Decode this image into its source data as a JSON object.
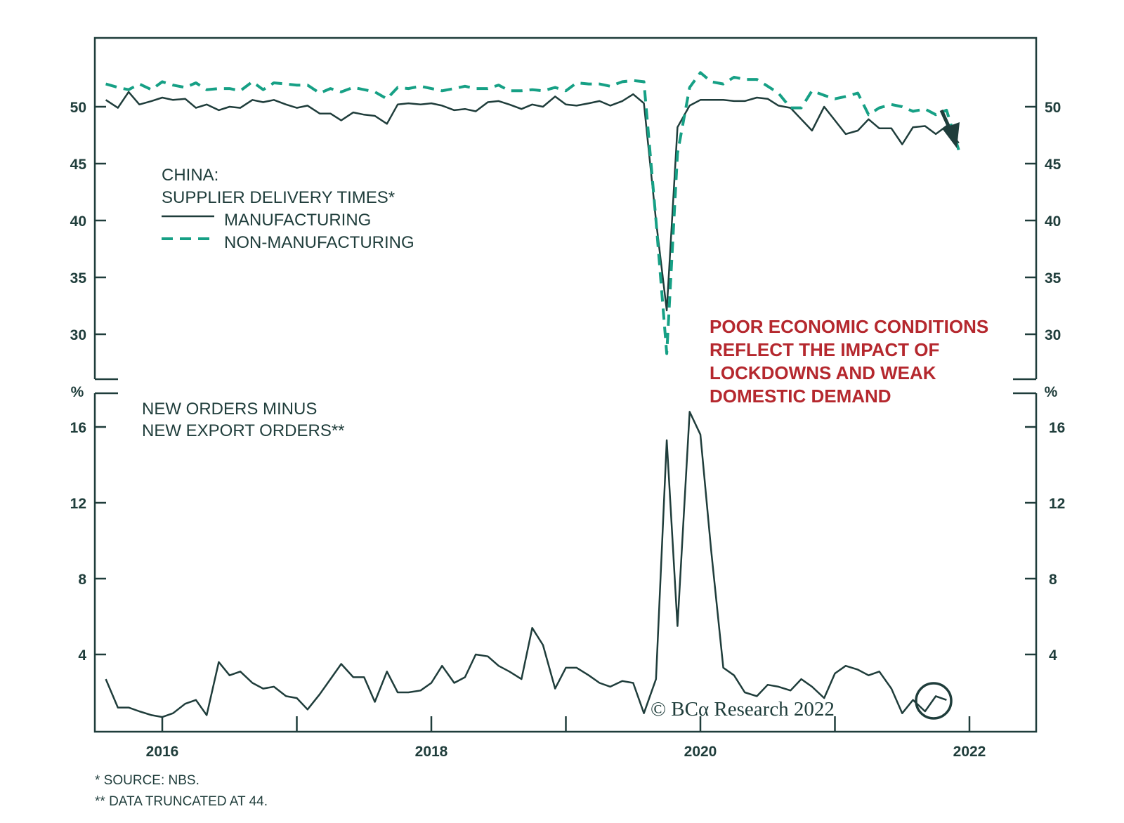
{
  "chart_data": [
    {
      "type": "line",
      "title": "CHINA:",
      "subtitle": "SUPPLIER DELIVERY TIMES*",
      "ylim": [
        26,
        56
      ],
      "yticks": [
        30,
        35,
        40,
        45,
        50
      ],
      "grid": false,
      "legend_placement": "top-left",
      "x_unit": "year",
      "series": [
        {
          "name": "MANUFACTURING",
          "color": "#1f3d3b",
          "style": "solid",
          "points": [
            [
              2015.58,
              50.6
            ],
            [
              2015.67,
              49.9
            ],
            [
              2015.75,
              51.3
            ],
            [
              2015.83,
              50.2
            ],
            [
              2015.92,
              50.5
            ],
            [
              2016.0,
              50.8
            ],
            [
              2016.08,
              50.6
            ],
            [
              2016.17,
              50.7
            ],
            [
              2016.25,
              49.9
            ],
            [
              2016.33,
              50.2
            ],
            [
              2016.42,
              49.7
            ],
            [
              2016.5,
              50.0
            ],
            [
              2016.58,
              49.9
            ],
            [
              2016.67,
              50.6
            ],
            [
              2016.75,
              50.4
            ],
            [
              2016.83,
              50.6
            ],
            [
              2016.92,
              50.2
            ],
            [
              2017.0,
              49.9
            ],
            [
              2017.08,
              50.1
            ],
            [
              2017.17,
              49.4
            ],
            [
              2017.25,
              49.4
            ],
            [
              2017.33,
              48.8
            ],
            [
              2017.42,
              49.5
            ],
            [
              2017.5,
              49.3
            ],
            [
              2017.58,
              49.2
            ],
            [
              2017.67,
              48.5
            ],
            [
              2017.75,
              50.2
            ],
            [
              2017.83,
              50.3
            ],
            [
              2017.92,
              50.2
            ],
            [
              2018.0,
              50.3
            ],
            [
              2018.08,
              50.1
            ],
            [
              2018.17,
              49.7
            ],
            [
              2018.25,
              49.8
            ],
            [
              2018.33,
              49.6
            ],
            [
              2018.42,
              50.4
            ],
            [
              2018.5,
              50.5
            ],
            [
              2018.58,
              50.2
            ],
            [
              2018.67,
              49.8
            ],
            [
              2018.75,
              50.2
            ],
            [
              2018.83,
              50.0
            ],
            [
              2018.92,
              50.9
            ],
            [
              2019.0,
              50.2
            ],
            [
              2019.08,
              50.1
            ],
            [
              2019.17,
              50.3
            ],
            [
              2019.25,
              50.5
            ],
            [
              2019.33,
              50.1
            ],
            [
              2019.42,
              50.5
            ],
            [
              2019.5,
              51.1
            ],
            [
              2019.58,
              50.3
            ],
            [
              2019.67,
              40.0
            ],
            [
              2019.75,
              32.1
            ],
            [
              2019.83,
              48.2
            ],
            [
              2019.92,
              50.1
            ],
            [
              2020.0,
              50.6
            ],
            [
              2020.08,
              50.6
            ],
            [
              2020.17,
              50.6
            ],
            [
              2020.25,
              50.5
            ],
            [
              2020.33,
              50.5
            ],
            [
              2020.42,
              50.8
            ],
            [
              2020.5,
              50.7
            ],
            [
              2020.58,
              50.1
            ],
            [
              2020.67,
              49.9
            ],
            [
              2020.75,
              48.9
            ],
            [
              2020.83,
              47.9
            ],
            [
              2020.92,
              50.0
            ],
            [
              2021.0,
              48.8
            ],
            [
              2021.08,
              47.6
            ],
            [
              2021.17,
              47.9
            ],
            [
              2021.25,
              48.9
            ],
            [
              2021.33,
              48.1
            ],
            [
              2021.42,
              48.1
            ],
            [
              2021.5,
              46.7
            ],
            [
              2021.58,
              48.2
            ],
            [
              2021.67,
              48.3
            ],
            [
              2021.75,
              47.6
            ],
            [
              2021.83,
              48.3
            ],
            [
              2021.92,
              46.8
            ]
          ]
        },
        {
          "name": "NON-MANUFACTURING",
          "color": "#16a085",
          "style": "dashed",
          "points": [
            [
              2015.58,
              52.0
            ],
            [
              2015.67,
              51.7
            ],
            [
              2015.75,
              51.5
            ],
            [
              2015.83,
              52.0
            ],
            [
              2015.92,
              51.5
            ],
            [
              2016.0,
              52.2
            ],
            [
              2016.08,
              51.9
            ],
            [
              2016.17,
              51.7
            ],
            [
              2016.25,
              52.1
            ],
            [
              2016.33,
              51.5
            ],
            [
              2016.42,
              51.6
            ],
            [
              2016.5,
              51.6
            ],
            [
              2016.58,
              51.4
            ],
            [
              2016.67,
              52.2
            ],
            [
              2016.75,
              51.5
            ],
            [
              2016.83,
              52.1
            ],
            [
              2016.92,
              52.0
            ],
            [
              2017.0,
              51.9
            ],
            [
              2017.08,
              51.9
            ],
            [
              2017.17,
              51.2
            ],
            [
              2017.25,
              51.6
            ],
            [
              2017.33,
              51.3
            ],
            [
              2017.42,
              51.7
            ],
            [
              2017.5,
              51.5
            ],
            [
              2017.58,
              51.3
            ],
            [
              2017.67,
              50.7
            ],
            [
              2017.75,
              51.7
            ],
            [
              2017.83,
              51.6
            ],
            [
              2017.92,
              51.8
            ],
            [
              2018.0,
              51.6
            ],
            [
              2018.08,
              51.4
            ],
            [
              2018.17,
              51.6
            ],
            [
              2018.25,
              51.8
            ],
            [
              2018.33,
              51.6
            ],
            [
              2018.42,
              51.6
            ],
            [
              2018.5,
              51.9
            ],
            [
              2018.58,
              51.4
            ],
            [
              2018.67,
              51.4
            ],
            [
              2018.75,
              51.5
            ],
            [
              2018.83,
              51.4
            ],
            [
              2018.92,
              51.7
            ],
            [
              2019.0,
              51.4
            ],
            [
              2019.08,
              52.1
            ],
            [
              2019.17,
              52.0
            ],
            [
              2019.25,
              52.0
            ],
            [
              2019.33,
              51.8
            ],
            [
              2019.42,
              52.2
            ],
            [
              2019.5,
              52.3
            ],
            [
              2019.58,
              52.2
            ],
            [
              2019.67,
              40.0
            ],
            [
              2019.75,
              28.3
            ],
            [
              2019.83,
              45.9
            ],
            [
              2019.92,
              51.7
            ],
            [
              2020.0,
              53.0
            ],
            [
              2020.08,
              52.2
            ],
            [
              2020.17,
              52.0
            ],
            [
              2020.25,
              52.6
            ],
            [
              2020.33,
              52.4
            ],
            [
              2020.42,
              52.4
            ],
            [
              2020.5,
              51.8
            ],
            [
              2020.58,
              51.2
            ],
            [
              2020.67,
              49.9
            ],
            [
              2020.75,
              49.9
            ],
            [
              2020.83,
              51.4
            ],
            [
              2020.92,
              51.0
            ],
            [
              2021.0,
              50.7
            ],
            [
              2021.08,
              50.9
            ],
            [
              2021.17,
              51.2
            ],
            [
              2021.25,
              49.3
            ],
            [
              2021.33,
              49.9
            ],
            [
              2021.42,
              50.2
            ],
            [
              2021.5,
              50.0
            ],
            [
              2021.58,
              49.6
            ],
            [
              2021.67,
              49.8
            ],
            [
              2021.75,
              49.3
            ],
            [
              2021.83,
              49.7
            ],
            [
              2021.92,
              46.2
            ]
          ]
        }
      ]
    },
    {
      "type": "line",
      "title": "NEW ORDERS MINUS",
      "subtitle": "NEW EXPORT ORDERS**",
      "yunit": "%",
      "ylim": [
        0,
        18
      ],
      "yticks": [
        4,
        8,
        12,
        16
      ],
      "xticks": [
        "2016",
        "2018",
        "2020",
        "2022"
      ],
      "grid": false,
      "series": [
        {
          "color": "#1f3d3b",
          "style": "solid",
          "points": [
            [
              2015.58,
              2.7
            ],
            [
              2015.67,
              1.2
            ],
            [
              2015.75,
              1.2
            ],
            [
              2015.83,
              1.0
            ],
            [
              2015.92,
              0.8
            ],
            [
              2016.0,
              0.7
            ],
            [
              2016.08,
              0.9
            ],
            [
              2016.17,
              1.4
            ],
            [
              2016.25,
              1.6
            ],
            [
              2016.33,
              0.8
            ],
            [
              2016.42,
              3.6
            ],
            [
              2016.5,
              2.9
            ],
            [
              2016.58,
              3.1
            ],
            [
              2016.67,
              2.5
            ],
            [
              2016.75,
              2.2
            ],
            [
              2016.83,
              2.3
            ],
            [
              2016.92,
              1.8
            ],
            [
              2017.0,
              1.7
            ],
            [
              2017.08,
              1.1
            ],
            [
              2017.17,
              1.9
            ],
            [
              2017.25,
              2.7
            ],
            [
              2017.33,
              3.5
            ],
            [
              2017.42,
              2.8
            ],
            [
              2017.5,
              2.8
            ],
            [
              2017.58,
              1.5
            ],
            [
              2017.67,
              3.1
            ],
            [
              2017.75,
              2.0
            ],
            [
              2017.83,
              2.0
            ],
            [
              2017.92,
              2.1
            ],
            [
              2018.0,
              2.5
            ],
            [
              2018.08,
              3.4
            ],
            [
              2018.17,
              2.5
            ],
            [
              2018.25,
              2.8
            ],
            [
              2018.33,
              4.0
            ],
            [
              2018.42,
              3.9
            ],
            [
              2018.5,
              3.4
            ],
            [
              2018.58,
              3.1
            ],
            [
              2018.67,
              2.7
            ],
            [
              2018.75,
              5.4
            ],
            [
              2018.83,
              4.5
            ],
            [
              2018.92,
              2.2
            ],
            [
              2019.0,
              3.3
            ],
            [
              2019.08,
              3.3
            ],
            [
              2019.17,
              2.9
            ],
            [
              2019.25,
              2.5
            ],
            [
              2019.33,
              2.3
            ],
            [
              2019.42,
              2.6
            ],
            [
              2019.5,
              2.5
            ],
            [
              2019.58,
              0.9
            ],
            [
              2019.67,
              2.7
            ],
            [
              2019.75,
              15.3
            ],
            [
              2019.83,
              5.5
            ],
            [
              2019.92,
              16.8
            ],
            [
              2020.0,
              15.6
            ],
            [
              2020.08,
              9.5
            ],
            [
              2020.17,
              3.3
            ],
            [
              2020.25,
              2.9
            ],
            [
              2020.33,
              2.0
            ],
            [
              2020.42,
              1.8
            ],
            [
              2020.5,
              2.4
            ],
            [
              2020.58,
              2.3
            ],
            [
              2020.67,
              2.1
            ],
            [
              2020.75,
              2.7
            ],
            [
              2020.83,
              2.3
            ],
            [
              2020.92,
              1.7
            ],
            [
              2021.0,
              3.0
            ],
            [
              2021.08,
              3.4
            ],
            [
              2021.17,
              3.2
            ],
            [
              2021.25,
              2.9
            ],
            [
              2021.33,
              3.1
            ],
            [
              2021.42,
              2.2
            ],
            [
              2021.5,
              0.9
            ],
            [
              2021.58,
              1.6
            ],
            [
              2021.67,
              1.0
            ],
            [
              2021.75,
              1.8
            ],
            [
              2021.83,
              1.6
            ]
          ]
        }
      ]
    }
  ],
  "annotation": "POOR ECONOMIC CONDITIONS\nREFLECT THE IMPACT OF\nLOCKDOWNS AND WEAK\nDOMESTIC DEMAND",
  "annotation_color": "#b5282e",
  "copyright": "© BCα Research 2022",
  "footnotes": [
    "* SOURCE: NBS.",
    "** DATA TRUNCATED AT 44."
  ],
  "icons": [
    "down-arrow-icon",
    "circle-highlight-icon"
  ]
}
